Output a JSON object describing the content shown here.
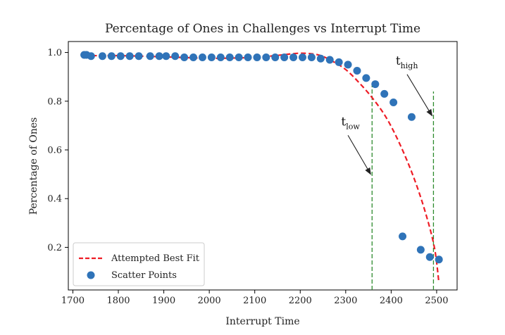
{
  "chart_data": {
    "type": "scatter",
    "title": "Percentage of Ones in Challenges vs Interrupt Time",
    "xlabel": "Interrupt Time",
    "ylabel": "Percentage of Ones",
    "xlim": [
      1690,
      2545
    ],
    "ylim": [
      0.025,
      1.045
    ],
    "xticks": [
      1700,
      1800,
      1900,
      2000,
      2100,
      2200,
      2300,
      2400,
      2500
    ],
    "xtick_labels": [
      "1700",
      "1800",
      "1900",
      "2000",
      "2100",
      "2200",
      "2300",
      "2400",
      "2500"
    ],
    "yticks": [
      0.2,
      0.4,
      0.6,
      0.8,
      1.0
    ],
    "ytick_labels": [
      "0.2",
      "0.4",
      "0.6",
      "0.8",
      "1.0"
    ],
    "grid": false,
    "legend_position": "lower-left",
    "series": [
      {
        "name": "Scatter Points",
        "kind": "scatter",
        "color": "#2f73b8",
        "points": [
          [
            1725,
            0.99
          ],
          [
            1730,
            0.99
          ],
          [
            1740,
            0.985
          ],
          [
            1765,
            0.985
          ],
          [
            1785,
            0.985
          ],
          [
            1805,
            0.985
          ],
          [
            1825,
            0.985
          ],
          [
            1845,
            0.985
          ],
          [
            1870,
            0.985
          ],
          [
            1890,
            0.985
          ],
          [
            1905,
            0.985
          ],
          [
            1925,
            0.985
          ],
          [
            1945,
            0.98
          ],
          [
            1965,
            0.98
          ],
          [
            1985,
            0.98
          ],
          [
            2005,
            0.98
          ],
          [
            2025,
            0.98
          ],
          [
            2045,
            0.98
          ],
          [
            2065,
            0.98
          ],
          [
            2085,
            0.98
          ],
          [
            2105,
            0.98
          ],
          [
            2125,
            0.98
          ],
          [
            2145,
            0.98
          ],
          [
            2165,
            0.98
          ],
          [
            2185,
            0.98
          ],
          [
            2205,
            0.98
          ],
          [
            2225,
            0.98
          ],
          [
            2245,
            0.975
          ],
          [
            2265,
            0.97
          ],
          [
            2285,
            0.96
          ],
          [
            2305,
            0.95
          ],
          [
            2325,
            0.925
          ],
          [
            2345,
            0.895
          ],
          [
            2365,
            0.87
          ],
          [
            2385,
            0.83
          ],
          [
            2405,
            0.795
          ],
          [
            2425,
            0.245
          ],
          [
            2445,
            0.735
          ],
          [
            2465,
            0.19
          ],
          [
            2485,
            0.16
          ],
          [
            2505,
            0.15
          ]
        ]
      },
      {
        "name": "Attempted Best Fit",
        "kind": "line",
        "color": "#ee1c25",
        "dash": "dashed",
        "points": [
          [
            1725,
            0.985
          ],
          [
            1750,
            0.987
          ],
          [
            1800,
            0.987
          ],
          [
            1850,
            0.985
          ],
          [
            1900,
            0.982
          ],
          [
            1950,
            0.979
          ],
          [
            2000,
            0.976
          ],
          [
            2050,
            0.977
          ],
          [
            2100,
            0.98
          ],
          [
            2150,
            0.988
          ],
          [
            2200,
            0.997
          ],
          [
            2240,
            0.99
          ],
          [
            2270,
            0.965
          ],
          [
            2300,
            0.93
          ],
          [
            2330,
            0.875
          ],
          [
            2360,
            0.81
          ],
          [
            2390,
            0.73
          ],
          [
            2420,
            0.62
          ],
          [
            2450,
            0.485
          ],
          [
            2475,
            0.345
          ],
          [
            2495,
            0.2
          ],
          [
            2505,
            0.055
          ]
        ]
      }
    ],
    "vlines": [
      {
        "x": 2358,
        "ymin": 0.025,
        "ymax": 0.88,
        "color": "#2e8b2e"
      },
      {
        "x": 2493,
        "ymin": 0.025,
        "ymax": 0.84,
        "color": "#2e8b2e"
      }
    ],
    "annotations": [
      {
        "main": "t",
        "sub": "low",
        "text_x": 2290,
        "text_y": 0.7,
        "arrow_from": [
          2305,
          0.66
        ],
        "arrow_to": [
          2355,
          0.5
        ]
      },
      {
        "main": "t",
        "sub": "high",
        "text_x": 2410,
        "text_y": 0.95,
        "arrow_from": [
          2435,
          0.91
        ],
        "arrow_to": [
          2490,
          0.74
        ]
      }
    ]
  }
}
